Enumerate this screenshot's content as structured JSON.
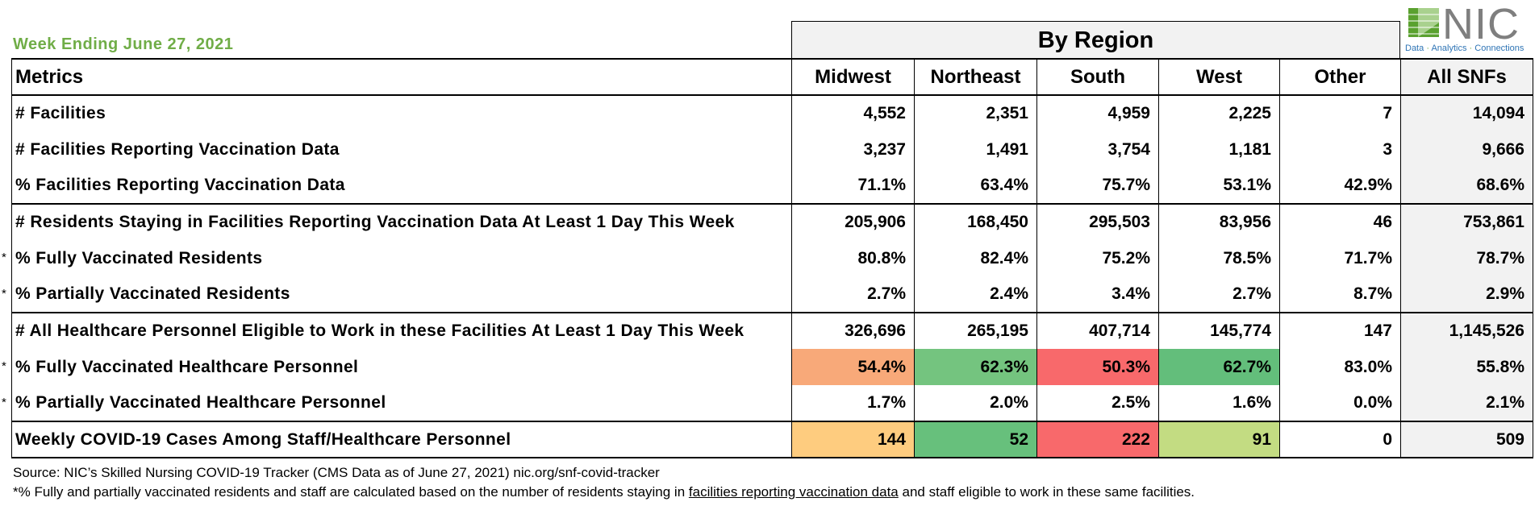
{
  "week_label": "Week Ending June 27, 2021",
  "logo": {
    "text": "NIC",
    "tagline_parts": [
      "Data",
      "Analytics",
      "Connections"
    ],
    "separator": "·",
    "colors": {
      "mark_green": "#5aa12f",
      "mark_light": "#a9d18e",
      "text_gray": "#7f7f7f",
      "tagline_blue": "#2e74b5"
    }
  },
  "by_region_label": "By Region",
  "columns": [
    "Metrics",
    "Midwest",
    "Northeast",
    "South",
    "West",
    "Other",
    "All SNFs"
  ],
  "rows": [
    {
      "label": "# Facilities",
      "values": [
        "4,552",
        "2,351",
        "4,959",
        "2,225",
        "7",
        "14,094"
      ],
      "star": "",
      "group_start": false,
      "colors": [
        null,
        null,
        null,
        null,
        null
      ]
    },
    {
      "label": "# Facilities Reporting Vaccination Data",
      "values": [
        "3,237",
        "1,491",
        "3,754",
        "1,181",
        "3",
        "9,666"
      ],
      "star": "",
      "group_start": false,
      "colors": [
        null,
        null,
        null,
        null,
        null
      ]
    },
    {
      "label": "% Facilities Reporting Vaccination Data",
      "values": [
        "71.1%",
        "63.4%",
        "75.7%",
        "53.1%",
        "42.9%",
        "68.6%"
      ],
      "star": "",
      "group_start": false,
      "colors": [
        null,
        null,
        null,
        null,
        null
      ]
    },
    {
      "label": "# Residents Staying in Facilities Reporting Vaccination Data At Least 1 Day This Week",
      "values": [
        "205,906",
        "168,450",
        "295,503",
        "83,956",
        "46",
        "753,861"
      ],
      "star": "",
      "group_start": true,
      "colors": [
        null,
        null,
        null,
        null,
        null
      ]
    },
    {
      "label": "% Fully Vaccinated Residents",
      "values": [
        "80.8%",
        "82.4%",
        "75.2%",
        "78.5%",
        "71.7%",
        "78.7%"
      ],
      "star": "*",
      "group_start": false,
      "colors": [
        null,
        null,
        null,
        null,
        null
      ]
    },
    {
      "label": "% Partially Vaccinated Residents",
      "values": [
        "2.7%",
        "2.4%",
        "3.4%",
        "2.7%",
        "8.7%",
        "2.9%"
      ],
      "star": "*",
      "group_start": false,
      "colors": [
        null,
        null,
        null,
        null,
        null
      ]
    },
    {
      "label": "# All Healthcare Personnel Eligible to Work in these Facilities At Least 1 Day This Week",
      "values": [
        "326,696",
        "265,195",
        "407,714",
        "145,774",
        "147",
        "1,145,526"
      ],
      "star": "",
      "group_start": true,
      "colors": [
        null,
        null,
        null,
        null,
        null
      ]
    },
    {
      "label": "% Fully Vaccinated Healthcare Personnel",
      "values": [
        "54.4%",
        "62.3%",
        "50.3%",
        "62.7%",
        "83.0%",
        "55.8%"
      ],
      "star": "*",
      "group_start": false,
      "colors": [
        "#f8a979",
        "#74c47f",
        "#f8696b",
        "#63be7b",
        null
      ]
    },
    {
      "label": "% Partially Vaccinated Healthcare Personnel",
      "values": [
        "1.7%",
        "2.0%",
        "2.5%",
        "1.6%",
        "0.0%",
        "2.1%"
      ],
      "star": "*",
      "group_start": false,
      "colors": [
        null,
        null,
        null,
        null,
        null
      ]
    },
    {
      "label": "Weekly COVID-19 Cases Among Staff/Healthcare Personnel",
      "values": [
        "144",
        "52",
        "222",
        "91",
        "0",
        "509"
      ],
      "star": "",
      "group_start": true,
      "colors": [
        "#fecc7f",
        "#67c07c",
        "#f8696b",
        "#c3dc82",
        null
      ]
    }
  ],
  "source": "Source: NIC’s Skilled Nursing COVID-19 Tracker (CMS Data as of June 27, 2021)  nic.org/snf-covid-tracker",
  "footnote": {
    "before": "*% Fully and partially vaccinated residents and staff are calculated based on the number of residents staying in ",
    "link": "facilities reporting vaccination data",
    "after": " and staff eligible to work in these same facilities."
  }
}
